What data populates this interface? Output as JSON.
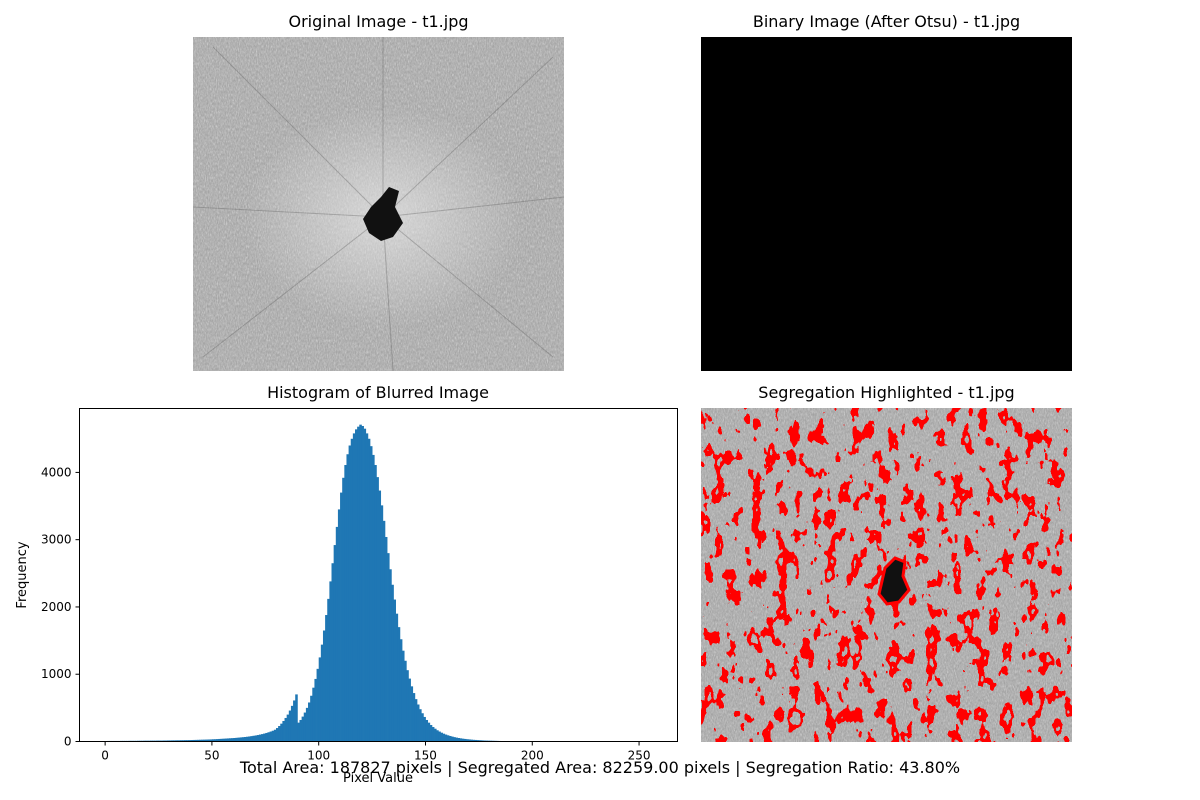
{
  "panels": {
    "original_title": "Original Image - t1.jpg",
    "binary_title": "Binary Image (After Otsu) - t1.jpg",
    "histogram_title": "Histogram of Blurred Image",
    "highlight_title": "Segregation Highlighted - t1.jpg"
  },
  "footer": "Total Area: 187827 pixels | Segregated Area: 82259.00 pixels | Segregation Ratio: 43.80%",
  "colors": {
    "bar": "#1f77b4",
    "highlight": "#ff0000",
    "gray_bg": "#9a9a9a"
  },
  "chart_data": {
    "type": "bar",
    "title": "Histogram of Blurred Image",
    "xlabel": "Pixel Value",
    "ylabel": "Frequency",
    "xlim": [
      -12,
      268
    ],
    "ylim": [
      0,
      4950
    ],
    "x_ticks": [
      0,
      50,
      100,
      150,
      200,
      250
    ],
    "y_ticks": [
      0,
      1000,
      2000,
      3000,
      4000
    ],
    "grid": false,
    "bins": {
      "start": 0,
      "width": 1
    },
    "series": [
      {
        "values": [
          0,
          8,
          8,
          8,
          8,
          8,
          8,
          9,
          9,
          9,
          9,
          10,
          10,
          10,
          10,
          11,
          11,
          11,
          12,
          12,
          12,
          13,
          13,
          13,
          14,
          14,
          14,
          15,
          15,
          16,
          16,
          17,
          17,
          18,
          18,
          19,
          19,
          20,
          20,
          21,
          22,
          23,
          24,
          25,
          26,
          27,
          28,
          29,
          30,
          31,
          33,
          34,
          36,
          38,
          40,
          42,
          44,
          46,
          48,
          50,
          52,
          55,
          58,
          61,
          64,
          67,
          71,
          75,
          80,
          85,
          90,
          96,
          103,
          110,
          118,
          127,
          137,
          148,
          160,
          175,
          200,
          230,
          265,
          305,
          350,
          400,
          460,
          530,
          610,
          700,
          280,
          320,
          370,
          430,
          500,
          580,
          680,
          800,
          930,
          1080,
          1250,
          1440,
          1650,
          1880,
          2120,
          2380,
          2650,
          2920,
          3190,
          3450,
          3700,
          3920,
          4110,
          4270,
          4400,
          4500,
          4580,
          4640,
          4680,
          4710,
          4690,
          4650,
          4580,
          4500,
          4390,
          4260,
          4110,
          3930,
          3730,
          3510,
          3280,
          3040,
          2800,
          2560,
          2330,
          2110,
          1900,
          1700,
          1520,
          1350,
          1200,
          1060,
          935,
          820,
          720,
          630,
          550,
          480,
          420,
          365,
          320,
          280,
          245,
          215,
          190,
          167,
          148,
          131,
          116,
          103,
          92,
          82,
          73,
          65,
          58,
          52,
          47,
          42,
          38,
          34,
          31,
          28,
          25,
          23,
          21,
          19,
          17,
          15,
          14,
          13,
          12,
          11,
          10,
          9,
          8,
          7,
          6,
          5,
          5,
          4,
          4,
          3,
          3,
          2,
          2,
          2,
          1,
          1,
          1,
          1,
          1,
          1,
          1,
          1,
          1,
          1,
          0,
          0,
          0,
          0,
          0,
          0,
          0,
          0,
          0,
          0,
          0,
          0,
          0,
          0,
          0,
          0,
          0,
          0
        ]
      }
    ]
  }
}
